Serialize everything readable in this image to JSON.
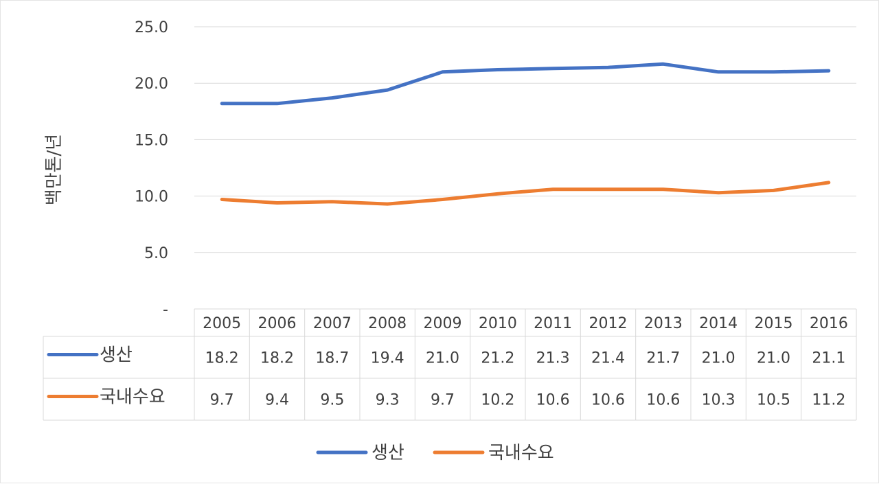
{
  "chart_data": {
    "type": "line",
    "title": "",
    "xlabel": "",
    "ylabel": "백만톤/년",
    "categories": [
      "2005",
      "2006",
      "2007",
      "2008",
      "2009",
      "2010",
      "2011",
      "2012",
      "2013",
      "2014",
      "2015",
      "2016"
    ],
    "ylim": [
      0,
      25
    ],
    "yticks": [
      "-",
      "5.0",
      "10.0",
      "15.0",
      "20.0",
      "25.0"
    ],
    "grid": true,
    "legend": "bottom",
    "data_table": true,
    "series": [
      {
        "name": "생산",
        "color": "#4472C4",
        "values": [
          18.2,
          18.2,
          18.7,
          19.4,
          21.0,
          21.2,
          21.3,
          21.4,
          21.7,
          21.0,
          21.0,
          21.1
        ],
        "labels": [
          "18.2",
          "18.2",
          "18.7",
          "19.4",
          "21.0",
          "21.2",
          "21.3",
          "21.4",
          "21.7",
          "21.0",
          "21.0",
          "21.1"
        ]
      },
      {
        "name": "국내수요",
        "color": "#ED7D31",
        "values": [
          9.7,
          9.4,
          9.5,
          9.3,
          9.7,
          10.2,
          10.6,
          10.6,
          10.6,
          10.3,
          10.5,
          11.2
        ],
        "labels": [
          "9.7",
          "9.4",
          "9.5",
          "9.3",
          "9.7",
          "10.2",
          "10.6",
          "10.6",
          "10.6",
          "10.3",
          "10.5",
          "11.2"
        ]
      }
    ]
  }
}
